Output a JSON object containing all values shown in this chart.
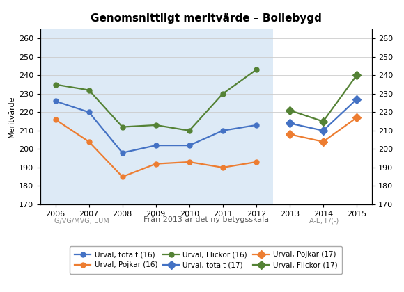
{
  "title": "Genomsnittligt meritvärde – Bollebygd",
  "ylabel": "Meritvärde",
  "xlabel_center": "Från 2013 är det ny betygsskala",
  "xlabel_left": "G/VG/MVG, EUM",
  "xlabel_right": "A-E, F/(-)",
  "ylim": [
    170,
    265
  ],
  "yticks": [
    170,
    180,
    190,
    200,
    210,
    220,
    230,
    240,
    250,
    260
  ],
  "bg_band_color": "#ddeaf6",
  "bg_band_xstart": 2005.55,
  "bg_band_xend": 2012.5,
  "years_16": [
    2006,
    2007,
    2008,
    2009,
    2010,
    2011,
    2012
  ],
  "years_17": [
    2013,
    2014,
    2015
  ],
  "totalt_16": [
    226,
    220,
    198,
    202,
    202,
    210,
    213
  ],
  "pojkar_16": [
    216,
    204,
    185,
    192,
    193,
    190,
    193
  ],
  "flickor_16": [
    235,
    232,
    212,
    213,
    210,
    230,
    243
  ],
  "totalt_17": [
    214,
    210,
    227
  ],
  "pojkar_17": [
    208,
    204,
    217
  ],
  "flickor_17": [
    221,
    215,
    240
  ],
  "color_totalt": "#4472c4",
  "color_pojkar": "#ed7d31",
  "color_flickor": "#548235",
  "lw": 1.6,
  "marker_16": "o",
  "marker_17": "D",
  "markersize_16": 5,
  "markersize_17": 6,
  "legend_labels": [
    "Urval, totalt (16)",
    "Urval, Pojkar (16)",
    "Urval, Flickor (16)",
    "Urval, totalt (17)",
    "Urval, Pojkar (17)",
    "Urval, Flickor (17)"
  ]
}
